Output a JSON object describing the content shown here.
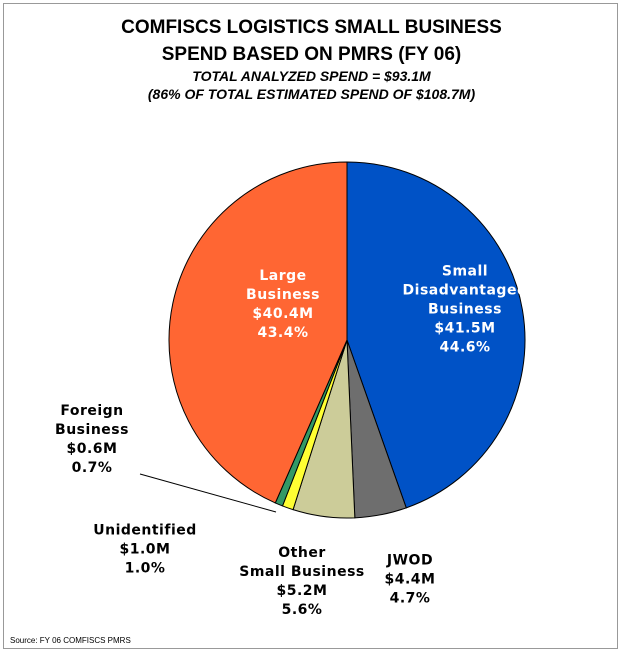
{
  "chart_data": {
    "type": "pie",
    "title": "COMFISCS LOGISTICS SMALL BUSINESS\nSPEND BASED ON PMRS (FY 06)",
    "subtitle": "TOTAL ANALYZED SPEND = $93.1M\n(86% OF TOTAL ESTIMATED SPEND OF $108.7M)",
    "categories": [
      "Small\nDisadvantaged\nBusiness",
      "JWOD",
      "Other\nSmall Business",
      "Unidentified",
      "Foreign\nBusiness",
      "Large\nBusiness"
    ],
    "amount_labels": [
      "$41.5M",
      "$4.4M",
      "$5.2M",
      "$1.0M",
      "$0.6M",
      "$40.4M"
    ],
    "values": [
      44.6,
      4.7,
      5.6,
      1.0,
      0.7,
      43.4
    ],
    "value_labels": [
      "44.6%",
      "4.7%",
      "5.6%",
      "1.0%",
      "0.7%",
      "43.4%"
    ],
    "colors": [
      "#0052c6",
      "#6e6e6e",
      "#cccc99",
      "#ffff33",
      "#339966",
      "#ff6633"
    ],
    "source": "Source:  FY 06 COMFISCS PMRS"
  }
}
